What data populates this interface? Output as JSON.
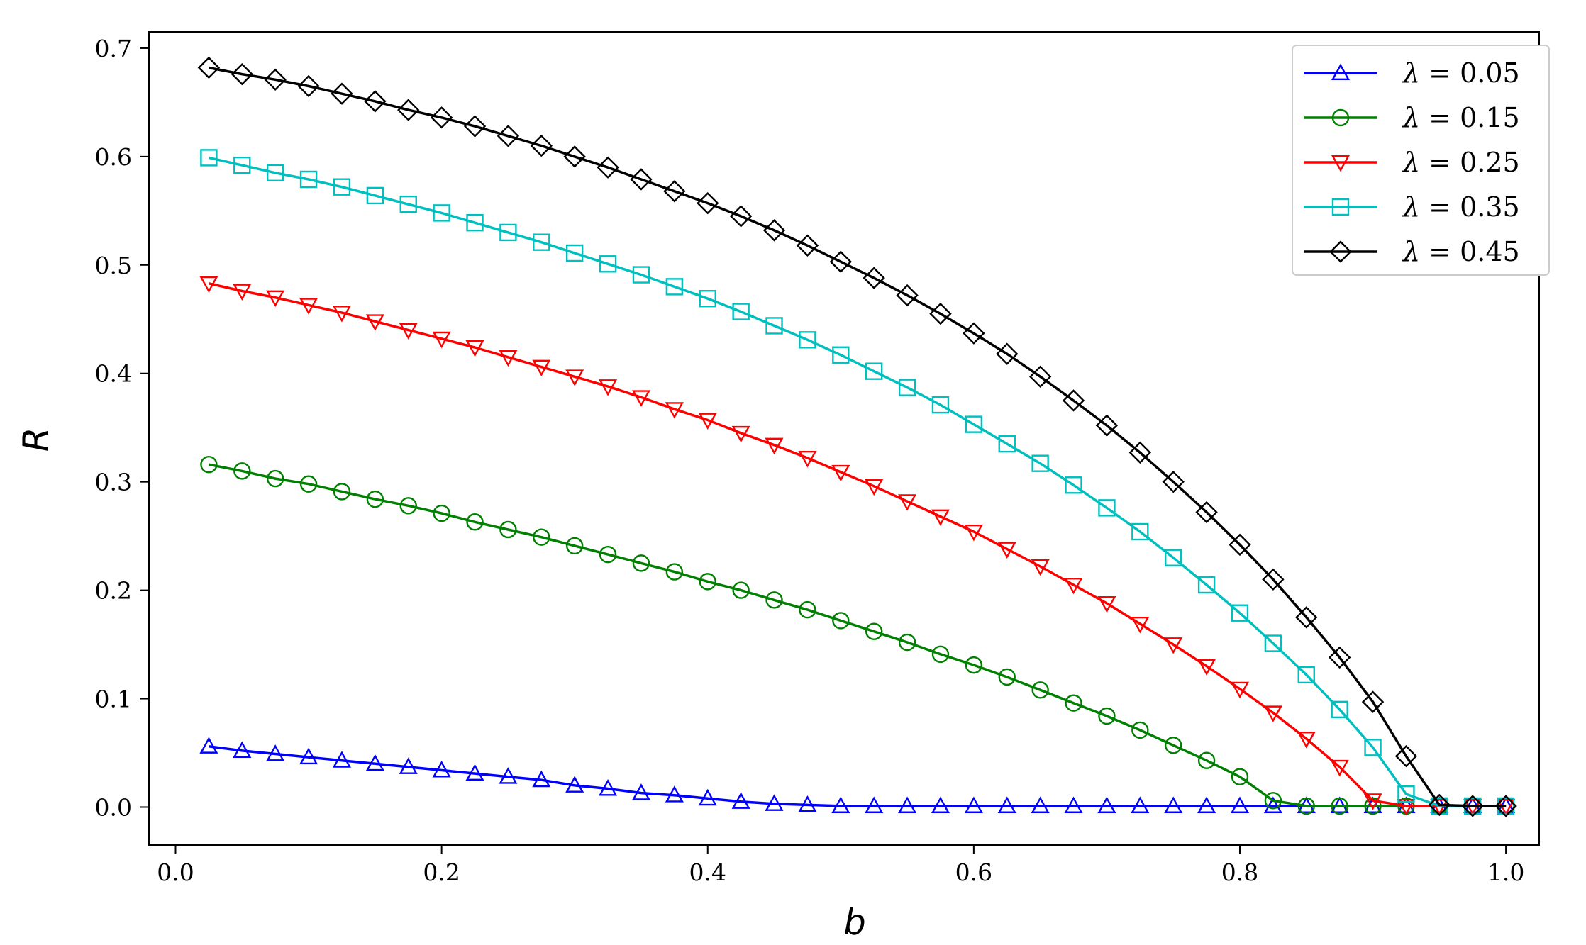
{
  "chart_data": {
    "type": "line",
    "xlabel": "b",
    "ylabel": "R",
    "xlim": [
      -0.02,
      1.025
    ],
    "ylim": [
      -0.035,
      0.715
    ],
    "xticks": [
      "0.0",
      "0.2",
      "0.4",
      "0.6",
      "0.8",
      "1.0"
    ],
    "yticks": [
      "0.0",
      "0.1",
      "0.2",
      "0.3",
      "0.4",
      "0.5",
      "0.6",
      "0.7"
    ],
    "grid": false,
    "legend_position": "top-right",
    "x": [
      0.025,
      0.05,
      0.075,
      0.1,
      0.125,
      0.15,
      0.175,
      0.2,
      0.225,
      0.25,
      0.275,
      0.3,
      0.325,
      0.35,
      0.375,
      0.4,
      0.425,
      0.45,
      0.475,
      0.5,
      0.525,
      0.55,
      0.575,
      0.6,
      0.625,
      0.65,
      0.675,
      0.7,
      0.725,
      0.75,
      0.775,
      0.8,
      0.825,
      0.85,
      0.875,
      0.9,
      0.925,
      0.95,
      0.975,
      1.0
    ],
    "series": [
      {
        "symbol": "λ",
        "value": "0.05",
        "color": "#0000ff",
        "marker": "triangle-up",
        "values": [
          0.056,
          0.052,
          0.049,
          0.046,
          0.043,
          0.04,
          0.037,
          0.034,
          0.031,
          0.028,
          0.025,
          0.02,
          0.017,
          0.013,
          0.011,
          0.008,
          0.005,
          0.003,
          0.002,
          0.001,
          0.001,
          0.001,
          0.001,
          0.001,
          0.001,
          0.001,
          0.001,
          0.001,
          0.001,
          0.001,
          0.001,
          0.001,
          0.001,
          0.001,
          0.001,
          0.001,
          0.001,
          0.001,
          0.001,
          0.001
        ]
      },
      {
        "symbol": "λ",
        "value": "0.15",
        "color": "#008000",
        "marker": "circle",
        "values": [
          0.316,
          0.31,
          0.303,
          0.298,
          0.291,
          0.284,
          0.278,
          0.271,
          0.263,
          0.256,
          0.249,
          0.241,
          0.233,
          0.225,
          0.217,
          0.208,
          0.2,
          0.191,
          0.182,
          0.172,
          0.162,
          0.152,
          0.141,
          0.131,
          0.12,
          0.108,
          0.096,
          0.084,
          0.071,
          0.057,
          0.043,
          0.028,
          0.006,
          0.001,
          0.001,
          0.001,
          0.001,
          0.001,
          0.001,
          0.001
        ]
      },
      {
        "symbol": "λ",
        "value": "0.25",
        "color": "#ff0000",
        "marker": "triangle-down",
        "values": [
          0.483,
          0.476,
          0.47,
          0.463,
          0.456,
          0.448,
          0.44,
          0.432,
          0.424,
          0.415,
          0.406,
          0.397,
          0.388,
          0.378,
          0.367,
          0.357,
          0.345,
          0.334,
          0.322,
          0.309,
          0.296,
          0.282,
          0.268,
          0.254,
          0.238,
          0.222,
          0.205,
          0.188,
          0.169,
          0.15,
          0.13,
          0.109,
          0.087,
          0.063,
          0.037,
          0.006,
          0.001,
          0.001,
          0.001,
          0.001
        ]
      },
      {
        "symbol": "λ",
        "value": "0.35",
        "color": "#00bfbf",
        "marker": "square",
        "values": [
          0.599,
          0.592,
          0.585,
          0.579,
          0.572,
          0.564,
          0.556,
          0.548,
          0.539,
          0.53,
          0.521,
          0.511,
          0.501,
          0.491,
          0.48,
          0.469,
          0.457,
          0.444,
          0.431,
          0.417,
          0.402,
          0.387,
          0.371,
          0.353,
          0.335,
          0.317,
          0.297,
          0.276,
          0.254,
          0.23,
          0.205,
          0.179,
          0.151,
          0.122,
          0.09,
          0.055,
          0.012,
          0.001,
          0.001,
          0.001
        ]
      },
      {
        "symbol": "λ",
        "value": "0.45",
        "color": "#000000",
        "marker": "diamond",
        "values": [
          0.682,
          0.676,
          0.671,
          0.665,
          0.658,
          0.651,
          0.643,
          0.636,
          0.628,
          0.619,
          0.61,
          0.6,
          0.59,
          0.579,
          0.568,
          0.557,
          0.545,
          0.532,
          0.518,
          0.503,
          0.488,
          0.472,
          0.455,
          0.437,
          0.418,
          0.397,
          0.375,
          0.352,
          0.327,
          0.3,
          0.272,
          0.242,
          0.21,
          0.175,
          0.138,
          0.097,
          0.047,
          0.002,
          0.001,
          0.001
        ]
      }
    ]
  }
}
